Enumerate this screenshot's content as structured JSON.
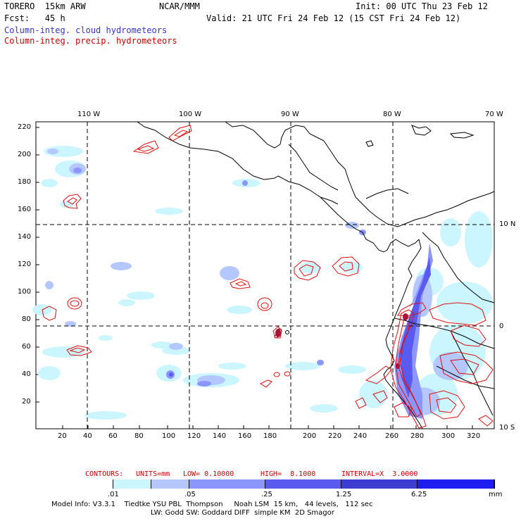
{
  "header": {
    "model": "TORERO  15km ARW",
    "org": "NCAR/MMM",
    "init": "Init: 00 UTC Thu 23 Feb 12",
    "fcst": "Fcst:   45 h",
    "valid": "Valid: 21 UTC Fri 24 Feb 12 (15 CST Fri 24 Feb 12)",
    "field_cloud": "Column-integ. cloud hydrometeors",
    "field_precip": "Column-integ. precip. hydrometeors"
  },
  "axes": {
    "top_lon_labels": [
      "110 W",
      "100 W",
      "90 W",
      "80 W",
      "70 W"
    ],
    "right_lat_labels": [
      "10 N",
      "0",
      "10 S"
    ],
    "y_ticks": [
      "220",
      "200",
      "180",
      "160",
      "140",
      "120",
      "100",
      "80",
      "60",
      "40",
      "20"
    ],
    "x_ticks": [
      "20",
      "40",
      "60",
      "80",
      "100",
      "120",
      "140",
      "160",
      "180",
      "200",
      "220",
      "240",
      "260",
      "280",
      "300",
      "320"
    ]
  },
  "contour_info": {
    "contours": "CONTOURS:",
    "units": "UNITS=mm",
    "low": "LOW= 0.10000",
    "high": "HIGH=  8.1000",
    "interval": "INTERVAL=X  3.0000"
  },
  "colorbar": {
    "labels": [
      ".01",
      ".05",
      ".25",
      "1.25",
      "6.25"
    ],
    "unit": "mm",
    "colors": [
      "#ffffff",
      "#ccf6ff",
      "#b4c8ff",
      "#8c96ff",
      "#5a5af0",
      "#3c3cd2",
      "#1e1ef0"
    ]
  },
  "footer": {
    "line1": "Model Info: V3.3.1    Tiedtke YSU PBL  Thompson     Noah LSM  15 km,   44 levels,   112 sec",
    "line2": "LW: Godd SW: Goddard DIFF  simple KM  2D Smagor"
  }
}
